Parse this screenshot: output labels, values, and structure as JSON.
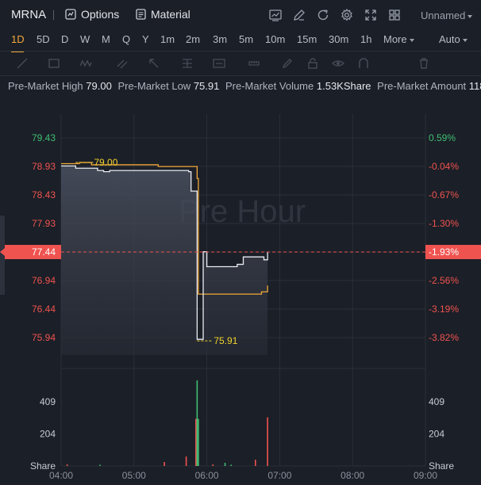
{
  "header": {
    "ticker": "MRNA",
    "options_label": "Options",
    "material_label": "Material",
    "layout_name": "Unnamed",
    "icons": [
      "chart-icon",
      "pen-icon",
      "refresh-icon",
      "gear-icon",
      "fullscreen-icon",
      "grid-icon"
    ]
  },
  "timeframes": {
    "items": [
      "1D",
      "5D",
      "D",
      "W",
      "M",
      "Q",
      "Y",
      "1m",
      "2m",
      "3m",
      "5m",
      "10m",
      "15m",
      "30m",
      "1h"
    ],
    "active": "1D",
    "more_label": "More",
    "auto_label": "Auto"
  },
  "stats": {
    "high_label": "Pre-Market High",
    "high_value": "79.00",
    "low_label": "Pre-Market Low",
    "low_value": "75.91",
    "volume_label": "Pre-Market Volume",
    "volume_value": "1.53KShare",
    "amount_label": "Pre-Market Amount",
    "amount_value": "118"
  },
  "colors": {
    "background": "#1b1f27",
    "up": "#3fbf74",
    "down": "#ef5350",
    "price_line": "#e9ecf1",
    "avg_line": "#f2a93b",
    "marker": "#f0d22e"
  },
  "chart_data": {
    "type": "line",
    "watermark": "Pre Hour",
    "price_ticks": [
      "79.43",
      "78.93",
      "78.43",
      "77.93",
      "77.44",
      "76.94",
      "76.44",
      "75.94"
    ],
    "percent_ticks": [
      "0.59%",
      "-0.04%",
      "-0.67%",
      "-1.30%",
      "-1.93%",
      "-2.56%",
      "-3.19%",
      "-3.82%"
    ],
    "current_price": "77.44",
    "current_percent": "-1.93%",
    "high_marker": "79.00",
    "low_marker": "75.91",
    "x_ticks": [
      "04:00",
      "05:00",
      "06:00",
      "07:00",
      "08:00",
      "09:00"
    ],
    "ylim": [
      75.94,
      79.43
    ],
    "price_series": [
      {
        "t": "04:00",
        "p": 78.94
      },
      {
        "t": "04:10",
        "p": 78.94
      },
      {
        "t": "04:12",
        "p": 78.9
      },
      {
        "t": "04:30",
        "p": 78.86
      },
      {
        "t": "04:35",
        "p": 78.84
      },
      {
        "t": "04:40",
        "p": 78.86
      },
      {
        "t": "05:30",
        "p": 78.86
      },
      {
        "t": "05:45",
        "p": 78.84
      },
      {
        "t": "05:47",
        "p": 78.5
      },
      {
        "t": "05:51",
        "p": 78.5
      },
      {
        "t": "05:52",
        "p": 75.91
      },
      {
        "t": "05:57",
        "p": 77.44
      },
      {
        "t": "06:00",
        "p": 77.18
      },
      {
        "t": "06:25",
        "p": 77.22
      },
      {
        "t": "06:30",
        "p": 77.35
      },
      {
        "t": "06:45",
        "p": 77.35
      },
      {
        "t": "06:47",
        "p": 77.3
      },
      {
        "t": "06:50",
        "p": 77.44
      }
    ],
    "avg_series": [
      {
        "t": "04:00",
        "p": 78.98
      },
      {
        "t": "04:15",
        "p": 79.0
      },
      {
        "t": "04:25",
        "p": 78.96
      },
      {
        "t": "05:00",
        "p": 78.96
      },
      {
        "t": "05:20",
        "p": 78.93
      },
      {
        "t": "05:48",
        "p": 78.93
      },
      {
        "t": "05:52",
        "p": 78.72
      },
      {
        "t": "05:53",
        "p": 76.7
      },
      {
        "t": "06:20",
        "p": 76.7
      },
      {
        "t": "06:45",
        "p": 76.74
      },
      {
        "t": "06:50",
        "p": 76.85
      }
    ],
    "volume_ticks": [
      "409",
      "204",
      "Share"
    ],
    "volume_max": 560,
    "volume_bars": [
      {
        "t": "04:05",
        "v": 10,
        "dir": "down"
      },
      {
        "t": "04:32",
        "v": 8,
        "dir": "up"
      },
      {
        "t": "05:25",
        "v": 25,
        "dir": "down"
      },
      {
        "t": "05:43",
        "v": 60,
        "dir": "down"
      },
      {
        "t": "05:51",
        "v": 300,
        "dir": "down"
      },
      {
        "t": "05:52",
        "v": 545,
        "dir": "up"
      },
      {
        "t": "05:53",
        "v": 300,
        "dir": "up"
      },
      {
        "t": "06:05",
        "v": 10,
        "dir": "down"
      },
      {
        "t": "06:15",
        "v": 20,
        "dir": "up"
      },
      {
        "t": "06:20",
        "v": 8,
        "dir": "up"
      },
      {
        "t": "06:40",
        "v": 40,
        "dir": "down"
      },
      {
        "t": "06:50",
        "v": 310,
        "dir": "down"
      }
    ]
  }
}
